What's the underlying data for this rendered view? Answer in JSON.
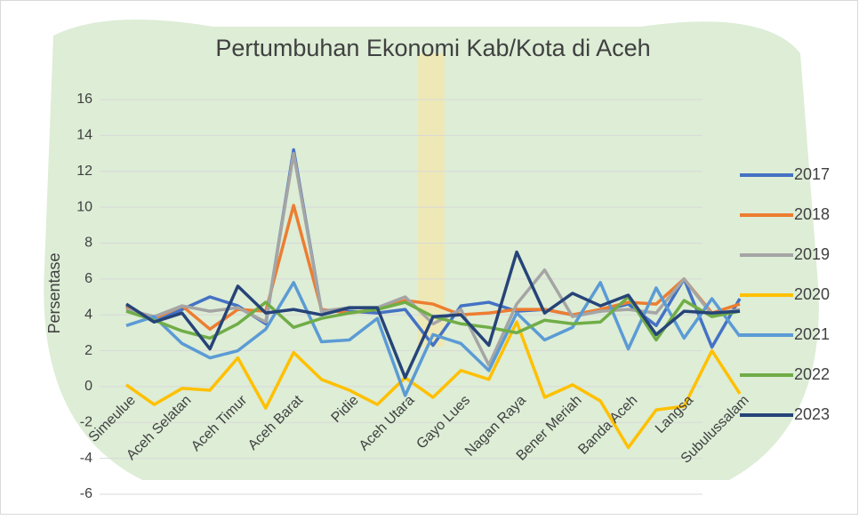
{
  "chart_data": {
    "type": "line",
    "title": "Pertumbuhan Ekonomi Kab/Kota di Aceh",
    "y_label": "Persentase",
    "categories": [
      "Simeulue",
      null,
      "Aceh Selatan",
      null,
      "Aceh Timur",
      null,
      "Aceh Barat",
      null,
      "Pidie",
      null,
      "Aceh Utara",
      null,
      "Gayo Lues",
      null,
      "Nagan Raya",
      null,
      "Bener Meriah",
      null,
      "Banda Aceh",
      null,
      "Langsa",
      null,
      "Subulussalam"
    ],
    "ylim": [
      -6,
      16
    ],
    "yticks": [
      -6,
      -4,
      -2,
      0,
      2,
      4,
      6,
      8,
      10,
      12,
      14,
      16
    ],
    "grid": true,
    "legend": "right",
    "series": [
      {
        "name": "2017",
        "color": "#4472c4",
        "values": [
          4.5,
          3.6,
          4.3,
          5.0,
          4.5,
          3.5,
          13.2,
          4.2,
          4.2,
          4.1,
          4.3,
          2.3,
          4.5,
          4.7,
          4.2,
          4.3,
          4.0,
          4.2,
          4.6,
          3.4,
          6.0,
          2.2,
          4.9
        ]
      },
      {
        "name": "2018",
        "color": "#ed7d31",
        "values": [
          4.4,
          3.8,
          4.5,
          3.2,
          4.3,
          4.2,
          10.1,
          4.3,
          4.1,
          4.3,
          4.8,
          4.6,
          4.0,
          4.1,
          4.3,
          4.3,
          4.0,
          4.3,
          4.7,
          4.6,
          6.0,
          4.1,
          4.6
        ]
      },
      {
        "name": "2019",
        "color": "#a5a5a5",
        "values": [
          4.3,
          3.9,
          4.5,
          4.2,
          4.4,
          3.6,
          13.0,
          4.2,
          4.4,
          4.4,
          5.0,
          3.5,
          4.3,
          1.2,
          4.6,
          6.5,
          3.9,
          4.2,
          4.3,
          4.1,
          6.0,
          4.0,
          4.3
        ]
      },
      {
        "name": "2020",
        "color": "#ffc000",
        "values": [
          0.1,
          -1.0,
          -0.1,
          -0.2,
          1.6,
          -1.2,
          1.9,
          0.4,
          -0.2,
          -1.0,
          0.5,
          -0.6,
          0.9,
          0.4,
          3.6,
          -0.6,
          0.1,
          -0.8,
          -3.4,
          -1.3,
          -1.1,
          2.0,
          -0.4
        ]
      },
      {
        "name": "2021",
        "color": "#5b9bd5",
        "values": [
          3.4,
          3.9,
          2.4,
          1.6,
          2.0,
          3.2,
          5.8,
          2.5,
          2.6,
          3.8,
          -0.5,
          2.9,
          2.4,
          0.9,
          4.1,
          2.6,
          3.3,
          5.8,
          2.1,
          5.5,
          2.7,
          4.9,
          2.8
        ]
      },
      {
        "name": "2022",
        "color": "#70ad47",
        "values": [
          4.2,
          3.7,
          3.1,
          2.7,
          3.5,
          4.7,
          3.3,
          3.8,
          4.1,
          4.3,
          4.7,
          3.9,
          3.5,
          3.3,
          3.0,
          3.7,
          3.5,
          3.6,
          5.0,
          2.6,
          4.8,
          3.9,
          4.2
        ]
      },
      {
        "name": "2023",
        "color": "#264478",
        "values": [
          4.6,
          3.6,
          4.1,
          2.1,
          5.6,
          4.1,
          4.3,
          4.0,
          4.4,
          4.4,
          0.5,
          3.9,
          4.0,
          2.3,
          7.5,
          4.1,
          5.2,
          4.5,
          5.1,
          2.9,
          4.2,
          4.1,
          4.2
        ]
      }
    ]
  }
}
